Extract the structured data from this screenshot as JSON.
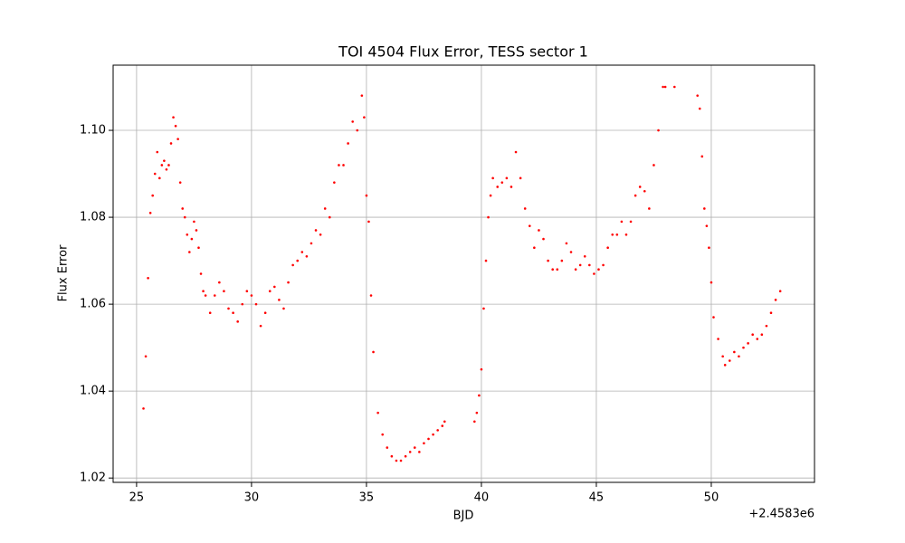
{
  "chart_data": {
    "type": "scatter",
    "title": "TOI 4504 Flux Error, TESS sector 1",
    "x_label": "BJD",
    "y_label": "Flux Error",
    "x_offset_label": "+2.4583e6",
    "color": "#ff0000",
    "grid": true,
    "xlim": [
      23.98,
      54.49
    ],
    "ylim": [
      1.019,
      1.115
    ],
    "xticks": [
      25,
      30,
      35,
      40,
      45,
      50
    ],
    "yticks": [
      1.02,
      1.04,
      1.06,
      1.08,
      {
        "value": 1.1,
        "label": "1.10"
      }
    ],
    "x": [
      25.3,
      25.4,
      25.5,
      25.6,
      25.7,
      25.8,
      25.9,
      26.0,
      26.1,
      26.2,
      26.3,
      26.4,
      26.5,
      26.6,
      26.7,
      26.8,
      26.9,
      27.0,
      27.1,
      27.2,
      27.3,
      27.4,
      27.5,
      27.6,
      27.7,
      27.8,
      27.9,
      28.0,
      28.2,
      28.4,
      28.6,
      28.8,
      29.0,
      29.2,
      29.4,
      29.6,
      29.8,
      30.0,
      30.2,
      30.4,
      30.6,
      30.8,
      31.0,
      31.2,
      31.4,
      31.6,
      31.8,
      32.0,
      32.2,
      32.4,
      32.6,
      32.8,
      33.0,
      33.2,
      33.4,
      33.6,
      33.8,
      34.0,
      34.2,
      34.4,
      34.6,
      34.8,
      34.9,
      35.0,
      35.1,
      35.2,
      35.3,
      35.5,
      35.7,
      35.9,
      36.1,
      36.3,
      36.5,
      36.7,
      36.9,
      37.1,
      37.3,
      37.5,
      37.7,
      37.9,
      38.1,
      38.3,
      38.4,
      39.7,
      39.8,
      39.9,
      40.0,
      40.1,
      40.2,
      40.3,
      40.4,
      40.5,
      40.7,
      40.9,
      41.1,
      41.3,
      41.5,
      41.7,
      41.9,
      42.1,
      42.3,
      42.5,
      42.7,
      42.9,
      43.1,
      43.3,
      43.5,
      43.7,
      43.9,
      44.1,
      44.3,
      44.5,
      44.7,
      44.9,
      45.1,
      45.3,
      45.5,
      45.7,
      45.9,
      46.1,
      46.3,
      46.5,
      46.7,
      46.9,
      47.1,
      47.3,
      47.5,
      47.7,
      47.9,
      48.0,
      48.4,
      49.4,
      49.5,
      49.6,
      49.7,
      49.8,
      49.9,
      50.0,
      50.1,
      50.3,
      50.5,
      50.6,
      50.8,
      51.0,
      51.2,
      51.4,
      51.6,
      51.8,
      52.0,
      52.2,
      52.4,
      52.6,
      52.8,
      53.0
    ],
    "values": [
      1.036,
      1.048,
      1.066,
      1.081,
      1.085,
      1.09,
      1.095,
      1.089,
      1.092,
      1.093,
      1.091,
      1.092,
      1.097,
      1.103,
      1.101,
      1.098,
      1.088,
      1.082,
      1.08,
      1.076,
      1.072,
      1.075,
      1.079,
      1.077,
      1.073,
      1.067,
      1.063,
      1.062,
      1.058,
      1.062,
      1.065,
      1.063,
      1.059,
      1.058,
      1.056,
      1.06,
      1.063,
      1.062,
      1.06,
      1.055,
      1.058,
      1.063,
      1.064,
      1.061,
      1.059,
      1.065,
      1.069,
      1.07,
      1.072,
      1.071,
      1.074,
      1.077,
      1.076,
      1.082,
      1.08,
      1.088,
      1.092,
      1.092,
      1.097,
      1.102,
      1.1,
      1.108,
      1.103,
      1.085,
      1.079,
      1.062,
      1.049,
      1.035,
      1.03,
      1.027,
      1.025,
      1.024,
      1.024,
      1.025,
      1.026,
      1.027,
      1.026,
      1.028,
      1.029,
      1.03,
      1.031,
      1.032,
      1.033,
      1.033,
      1.035,
      1.039,
      1.045,
      1.059,
      1.07,
      1.08,
      1.085,
      1.089,
      1.087,
      1.088,
      1.089,
      1.087,
      1.095,
      1.089,
      1.082,
      1.078,
      1.073,
      1.077,
      1.075,
      1.07,
      1.068,
      1.068,
      1.07,
      1.074,
      1.072,
      1.068,
      1.069,
      1.071,
      1.069,
      1.067,
      1.068,
      1.069,
      1.073,
      1.076,
      1.076,
      1.079,
      1.076,
      1.079,
      1.085,
      1.087,
      1.086,
      1.082,
      1.092,
      1.1,
      1.11,
      1.11,
      1.11,
      1.108,
      1.105,
      1.094,
      1.082,
      1.078,
      1.073,
      1.065,
      1.057,
      1.052,
      1.048,
      1.046,
      1.047,
      1.049,
      1.048,
      1.05,
      1.051,
      1.053,
      1.052,
      1.053,
      1.055,
      1.058,
      1.061,
      1.063
    ]
  }
}
